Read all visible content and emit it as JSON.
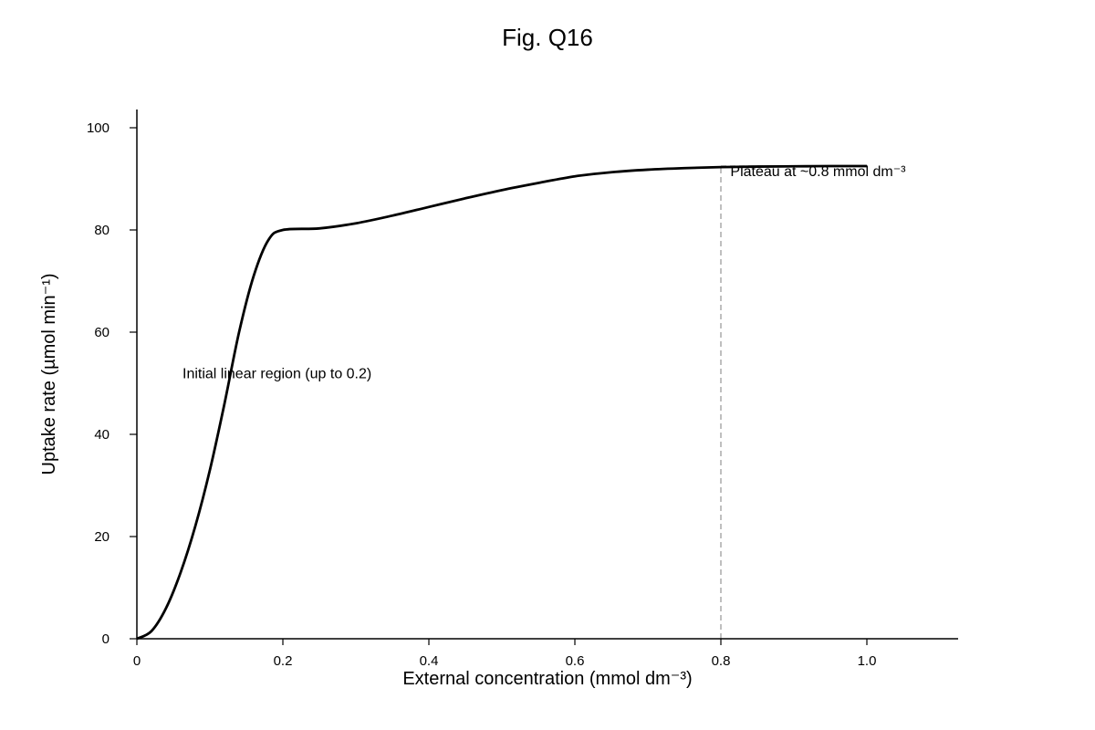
{
  "chart_data": {
    "type": "line",
    "title": "Fig. Q16",
    "xlabel": "External concentration (mmol dm⁻³)",
    "ylabel": "Uptake rate (µmol min⁻¹)",
    "xlim": [
      0,
      1.12
    ],
    "ylim": [
      0,
      100
    ],
    "xticks": [
      0,
      0.2,
      0.4,
      0.6,
      0.8,
      1.0
    ],
    "xtick_labels": [
      "0",
      "0.2",
      "0.4",
      "0.6",
      "0.8",
      "1.0"
    ],
    "yticks": [
      0,
      20,
      40,
      60,
      80,
      100
    ],
    "ytick_labels": [
      "0",
      "20",
      "40",
      "60",
      "80",
      "100"
    ],
    "grid": false,
    "series": [
      {
        "color": "#000000",
        "x": [
          0,
          0.02,
          0.04,
          0.06,
          0.08,
          0.1,
          0.12,
          0.14,
          0.16,
          0.18,
          0.2,
          0.25,
          0.3,
          0.35,
          0.4,
          0.45,
          0.5,
          0.55,
          0.6,
          0.65,
          0.7,
          0.75,
          0.8,
          0.85,
          0.9,
          0.95,
          1.0
        ],
        "y": [
          0,
          1.5,
          6,
          13,
          22,
          33,
          46,
          60,
          71,
          78,
          80,
          80.3,
          81.3,
          82.8,
          84.5,
          86.2,
          87.8,
          89.2,
          90.5,
          91.3,
          91.8,
          92.1,
          92.3,
          92.4,
          92.45,
          92.5,
          92.5
        ]
      }
    ],
    "reference_line": {
      "x": 0.8,
      "y_from": 0,
      "y_to": 92.3,
      "color": "#aaaaaa",
      "style": "dashed"
    },
    "plateau_line": {
      "x_from": 0.8,
      "x_to": 1.0,
      "y": 92.5,
      "color": "#aaaaaa",
      "style": "dashed"
    },
    "annotations": [
      {
        "text": "Initial linear region (up to 0.2)",
        "x": 0.0625,
        "y": 51
      },
      {
        "text": "Plateau at ~0.8 mmol dm⁻³",
        "x": 0.813,
        "y": 90.5
      }
    ]
  }
}
